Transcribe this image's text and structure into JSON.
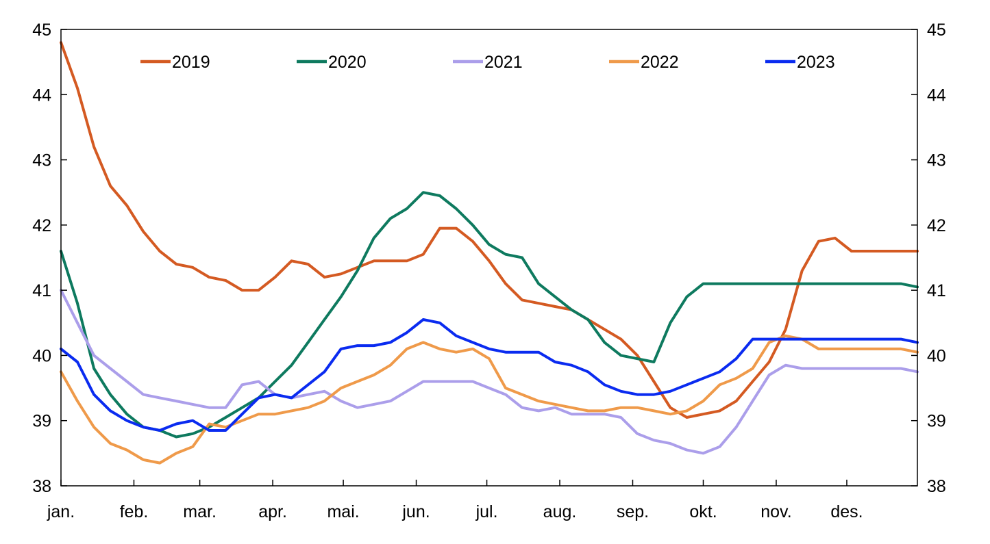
{
  "chart_data": {
    "type": "line",
    "title": "",
    "xlabel": "",
    "ylabel": "",
    "ylim": [
      38,
      45
    ],
    "y_ticks": [
      38,
      39,
      40,
      41,
      42,
      43,
      44,
      45
    ],
    "right_axis_mirrors_left": true,
    "grid": false,
    "legend_position": "top",
    "x_unit": "day of year",
    "xlim": [
      1,
      365
    ],
    "categories": [
      "jan.",
      "feb.",
      "mar.",
      "apr.",
      "mai.",
      "jun.",
      "jul.",
      "aug.",
      "sep.",
      "okt.",
      "nov.",
      "des."
    ],
    "category_start_day": [
      1,
      32,
      60,
      91,
      121,
      152,
      182,
      213,
      244,
      274,
      305,
      335
    ],
    "series": [
      {
        "name": "2019",
        "color": "#d45a22",
        "x": [
          1,
          8,
          15,
          22,
          29,
          36,
          43,
          50,
          57,
          64,
          71,
          78,
          85,
          92,
          99,
          106,
          113,
          120,
          127,
          134,
          141,
          148,
          155,
          162,
          169,
          176,
          183,
          190,
          197,
          204,
          211,
          218,
          225,
          232,
          239,
          246,
          253,
          260,
          267,
          274,
          281,
          288,
          295,
          302,
          309,
          316,
          323,
          330,
          337,
          344,
          351,
          358,
          365
        ],
        "values": [
          44.8,
          44.1,
          43.2,
          42.6,
          42.3,
          41.9,
          41.6,
          41.4,
          41.35,
          41.2,
          41.15,
          41.0,
          41.0,
          41.2,
          41.45,
          41.4,
          41.2,
          41.25,
          41.35,
          41.45,
          41.45,
          41.45,
          41.55,
          41.95,
          41.95,
          41.75,
          41.45,
          41.1,
          40.85,
          40.8,
          40.75,
          40.7,
          40.55,
          40.4,
          40.25,
          40.0,
          39.6,
          39.2,
          39.05,
          39.1,
          39.15,
          39.3,
          39.6,
          39.9,
          40.4,
          41.3,
          41.75,
          41.8,
          41.6,
          41.6,
          41.6,
          41.6,
          41.6
        ]
      },
      {
        "name": "2020",
        "color": "#0e7a5f",
        "x": [
          1,
          8,
          15,
          22,
          29,
          36,
          43,
          50,
          57,
          64,
          71,
          78,
          85,
          92,
          99,
          106,
          113,
          120,
          127,
          134,
          141,
          148,
          155,
          162,
          169,
          176,
          183,
          190,
          197,
          204,
          211,
          218,
          225,
          232,
          239,
          246,
          253,
          260,
          267,
          274,
          281,
          288,
          295,
          302,
          309,
          316,
          323,
          330,
          337,
          344,
          351,
          358,
          365
        ],
        "values": [
          41.6,
          40.8,
          39.8,
          39.4,
          39.1,
          38.9,
          38.85,
          38.75,
          38.8,
          38.9,
          39.05,
          39.2,
          39.35,
          39.6,
          39.85,
          40.2,
          40.55,
          40.9,
          41.3,
          41.8,
          42.1,
          42.25,
          42.5,
          42.45,
          42.25,
          42.0,
          41.7,
          41.55,
          41.5,
          41.1,
          40.9,
          40.7,
          40.55,
          40.2,
          40.0,
          39.95,
          39.9,
          40.5,
          40.9,
          41.1,
          41.1,
          41.1,
          41.1,
          41.1,
          41.1,
          41.1,
          41.1,
          41.1,
          41.1,
          41.1,
          41.1,
          41.1,
          41.05
        ]
      },
      {
        "name": "2021",
        "color": "#ab9eea",
        "x": [
          1,
          8,
          15,
          22,
          29,
          36,
          43,
          50,
          57,
          64,
          71,
          78,
          85,
          92,
          99,
          106,
          113,
          120,
          127,
          134,
          141,
          148,
          155,
          162,
          169,
          176,
          183,
          190,
          197,
          204,
          211,
          218,
          225,
          232,
          239,
          246,
          253,
          260,
          267,
          274,
          281,
          288,
          295,
          302,
          309,
          316,
          323,
          330,
          337,
          344,
          351,
          358,
          365
        ],
        "values": [
          41.0,
          40.5,
          40.0,
          39.8,
          39.6,
          39.4,
          39.35,
          39.3,
          39.25,
          39.2,
          39.2,
          39.55,
          39.6,
          39.4,
          39.35,
          39.4,
          39.45,
          39.3,
          39.2,
          39.25,
          39.3,
          39.45,
          39.6,
          39.6,
          39.6,
          39.6,
          39.5,
          39.4,
          39.2,
          39.15,
          39.2,
          39.1,
          39.1,
          39.1,
          39.05,
          38.8,
          38.7,
          38.65,
          38.55,
          38.5,
          38.6,
          38.9,
          39.3,
          39.7,
          39.85,
          39.8,
          39.8,
          39.8,
          39.8,
          39.8,
          39.8,
          39.8,
          39.75
        ]
      },
      {
        "name": "2022",
        "color": "#ef9a4a",
        "x": [
          1,
          8,
          15,
          22,
          29,
          36,
          43,
          50,
          57,
          64,
          71,
          78,
          85,
          92,
          99,
          106,
          113,
          120,
          127,
          134,
          141,
          148,
          155,
          162,
          169,
          176,
          183,
          190,
          197,
          204,
          211,
          218,
          225,
          232,
          239,
          246,
          253,
          260,
          267,
          274,
          281,
          288,
          295,
          302,
          309,
          316,
          323,
          330,
          337,
          344,
          351,
          358,
          365
        ],
        "values": [
          39.75,
          39.3,
          38.9,
          38.65,
          38.55,
          38.4,
          38.35,
          38.5,
          38.6,
          38.95,
          38.9,
          39.0,
          39.1,
          39.1,
          39.15,
          39.2,
          39.3,
          39.5,
          39.6,
          39.7,
          39.85,
          40.1,
          40.2,
          40.1,
          40.05,
          40.1,
          39.95,
          39.5,
          39.4,
          39.3,
          39.25,
          39.2,
          39.15,
          39.15,
          39.2,
          39.2,
          39.15,
          39.1,
          39.15,
          39.3,
          39.55,
          39.65,
          39.8,
          40.2,
          40.3,
          40.25,
          40.1,
          40.1,
          40.1,
          40.1,
          40.1,
          40.1,
          40.05
        ]
      },
      {
        "name": "2023",
        "color": "#0a2bf0",
        "x": [
          1,
          8,
          15,
          22,
          29,
          36,
          43,
          50,
          57,
          64,
          71,
          78,
          85,
          92,
          99,
          106,
          113,
          120,
          127,
          134,
          141,
          148,
          155,
          162,
          169,
          176,
          183,
          190,
          197,
          204,
          211,
          218,
          225,
          232,
          239,
          246,
          253,
          260,
          267,
          274,
          281,
          288,
          295,
          302,
          309,
          316,
          323,
          330,
          337,
          344,
          351,
          358,
          365
        ],
        "values": [
          40.1,
          39.9,
          39.4,
          39.15,
          39.0,
          38.9,
          38.85,
          38.95,
          39.0,
          38.85,
          38.85,
          39.1,
          39.35,
          39.4,
          39.35,
          39.55,
          39.75,
          40.1,
          40.15,
          40.15,
          40.2,
          40.35,
          40.55,
          40.5,
          40.3,
          40.2,
          40.1,
          40.05,
          40.05,
          40.05,
          39.9,
          39.85,
          39.75,
          39.55,
          39.45,
          39.4,
          39.4,
          39.45,
          39.55,
          39.65,
          39.75,
          39.95,
          40.25,
          40.25,
          40.25,
          40.25,
          40.25,
          40.25,
          40.25,
          40.25,
          40.25,
          40.25,
          40.2
        ]
      }
    ]
  }
}
